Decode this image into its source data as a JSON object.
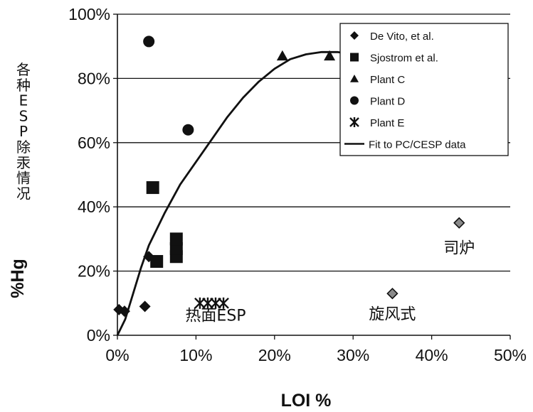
{
  "chart_data": {
    "type": "scatter",
    "xlabel": "LOI %",
    "ylabel_vertical": "各种ESP除汞情况",
    "ylabel": "%Hg",
    "xlim": [
      0,
      50
    ],
    "ylim": [
      0,
      100
    ],
    "x_ticks": [
      "0%",
      "10%",
      "20%",
      "30%",
      "40%",
      "50%"
    ],
    "y_ticks": [
      "0%",
      "20%",
      "40%",
      "60%",
      "80%",
      "100%"
    ],
    "grid": "horizontal",
    "legend_position": "top-right",
    "series": [
      {
        "name": "De Vito, et al.",
        "marker": "diamond",
        "points": [
          [
            0.2,
            8
          ],
          [
            0.9,
            7.5
          ],
          [
            3.5,
            9
          ],
          [
            4,
            24.5
          ]
        ]
      },
      {
        "name": "Sjostrom et al.",
        "marker": "square",
        "points": [
          [
            4.5,
            46
          ],
          [
            5,
            23
          ],
          [
            7.5,
            24.5
          ],
          [
            7.5,
            27
          ],
          [
            7.5,
            30
          ]
        ]
      },
      {
        "name": "Plant C",
        "marker": "triangle",
        "points": [
          [
            21,
            87
          ],
          [
            27,
            87
          ]
        ]
      },
      {
        "name": "Plant D",
        "marker": "circle",
        "points": [
          [
            4,
            91.5
          ],
          [
            9,
            64
          ]
        ]
      },
      {
        "name": "Plant E",
        "marker": "star",
        "points": [
          [
            10.5,
            10
          ],
          [
            11.5,
            10
          ],
          [
            12.5,
            10
          ],
          [
            13.5,
            10
          ]
        ]
      },
      {
        "name": "Fit to PC/CESP data",
        "marker": "line",
        "points": [
          [
            0,
            0
          ],
          [
            1,
            5
          ],
          [
            2,
            13
          ],
          [
            3,
            21
          ],
          [
            4,
            28
          ],
          [
            6,
            38
          ],
          [
            8,
            47
          ],
          [
            10,
            54
          ],
          [
            12,
            61
          ],
          [
            14,
            68
          ],
          [
            16,
            74
          ],
          [
            18,
            79
          ],
          [
            20,
            83
          ],
          [
            22,
            86
          ],
          [
            24,
            87.5
          ],
          [
            26,
            88.2
          ],
          [
            28,
            88.2
          ],
          [
            30,
            87.5
          ]
        ]
      }
    ],
    "extra_points": [
      {
        "x": 35,
        "y": 13,
        "marker": "diamond-gray"
      },
      {
        "x": 43.5,
        "y": 35,
        "marker": "diamond-gray"
      }
    ],
    "annotations": [
      {
        "text": "热面ESP",
        "x": 12.5,
        "y": 4.5
      },
      {
        "text": "旋风式",
        "x": 35,
        "y": 5
      },
      {
        "text": "司炉",
        "x": 43.5,
        "y": 25.5
      }
    ]
  }
}
